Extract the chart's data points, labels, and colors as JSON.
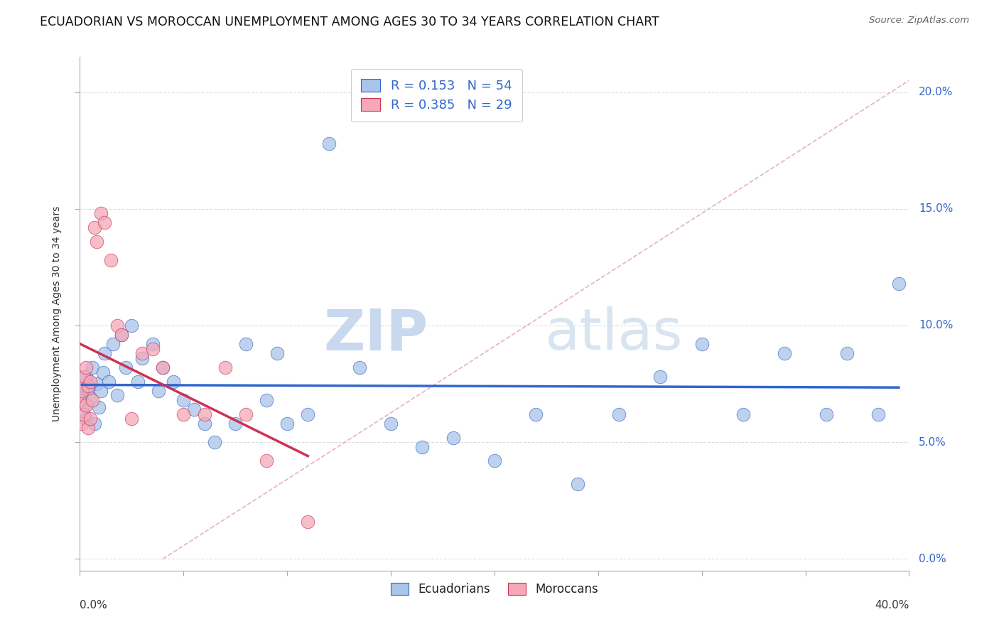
{
  "title": "ECUADORIAN VS MOROCCAN UNEMPLOYMENT AMONG AGES 30 TO 34 YEARS CORRELATION CHART",
  "source": "Source: ZipAtlas.com",
  "ylabel": "Unemployment Among Ages 30 to 34 years",
  "legend_ecuadorians": "Ecuadorians",
  "legend_moroccans": "Moroccans",
  "R_ecu": 0.153,
  "N_ecu": 54,
  "R_mor": 0.385,
  "N_mor": 29,
  "ecuadorian_color": "#A8C4E8",
  "moroccan_color": "#F4A8B8",
  "trend_ecu_color": "#3366CC",
  "trend_mor_color": "#CC3355",
  "watermark_zip": "ZIP",
  "watermark_atlas": "atlas",
  "ecu_x": [
    0.001,
    0.001,
    0.002,
    0.002,
    0.003,
    0.003,
    0.004,
    0.005,
    0.006,
    0.007,
    0.008,
    0.009,
    0.01,
    0.011,
    0.012,
    0.014,
    0.016,
    0.018,
    0.02,
    0.022,
    0.025,
    0.028,
    0.03,
    0.035,
    0.038,
    0.04,
    0.045,
    0.05,
    0.055,
    0.06,
    0.065,
    0.075,
    0.08,
    0.09,
    0.095,
    0.1,
    0.11,
    0.12,
    0.135,
    0.15,
    0.165,
    0.18,
    0.2,
    0.22,
    0.24,
    0.26,
    0.28,
    0.3,
    0.32,
    0.34,
    0.36,
    0.37,
    0.385,
    0.395
  ],
  "ecu_y": [
    0.071,
    0.068,
    0.074,
    0.066,
    0.078,
    0.06,
    0.073,
    0.069,
    0.082,
    0.058,
    0.075,
    0.065,
    0.072,
    0.08,
    0.088,
    0.076,
    0.092,
    0.07,
    0.096,
    0.082,
    0.1,
    0.076,
    0.086,
    0.092,
    0.072,
    0.082,
    0.076,
    0.068,
    0.064,
    0.058,
    0.05,
    0.058,
    0.092,
    0.068,
    0.088,
    0.058,
    0.062,
    0.178,
    0.082,
    0.058,
    0.048,
    0.052,
    0.042,
    0.062,
    0.032,
    0.062,
    0.078,
    0.092,
    0.062,
    0.088,
    0.062,
    0.088,
    0.062,
    0.118
  ],
  "mor_x": [
    0.0,
    0.001,
    0.001,
    0.002,
    0.002,
    0.003,
    0.003,
    0.004,
    0.004,
    0.005,
    0.005,
    0.006,
    0.007,
    0.008,
    0.01,
    0.012,
    0.015,
    0.018,
    0.02,
    0.025,
    0.03,
    0.035,
    0.04,
    0.05,
    0.06,
    0.07,
    0.08,
    0.09,
    0.11
  ],
  "mor_y": [
    0.068,
    0.072,
    0.058,
    0.078,
    0.062,
    0.082,
    0.066,
    0.074,
    0.056,
    0.076,
    0.06,
    0.068,
    0.142,
    0.136,
    0.148,
    0.144,
    0.128,
    0.1,
    0.096,
    0.06,
    0.088,
    0.09,
    0.082,
    0.062,
    0.062,
    0.082,
    0.062,
    0.042,
    0.016
  ],
  "xlim": [
    0.0,
    0.4
  ],
  "ylim": [
    -0.005,
    0.215
  ],
  "y_ticks": [
    0.0,
    0.05,
    0.1,
    0.15,
    0.2
  ],
  "x_ticks_minor": [
    0.05,
    0.1,
    0.15,
    0.2,
    0.25,
    0.3,
    0.35
  ],
  "diag_color": "#CCAAAA",
  "grid_color": "#DDDDDD"
}
